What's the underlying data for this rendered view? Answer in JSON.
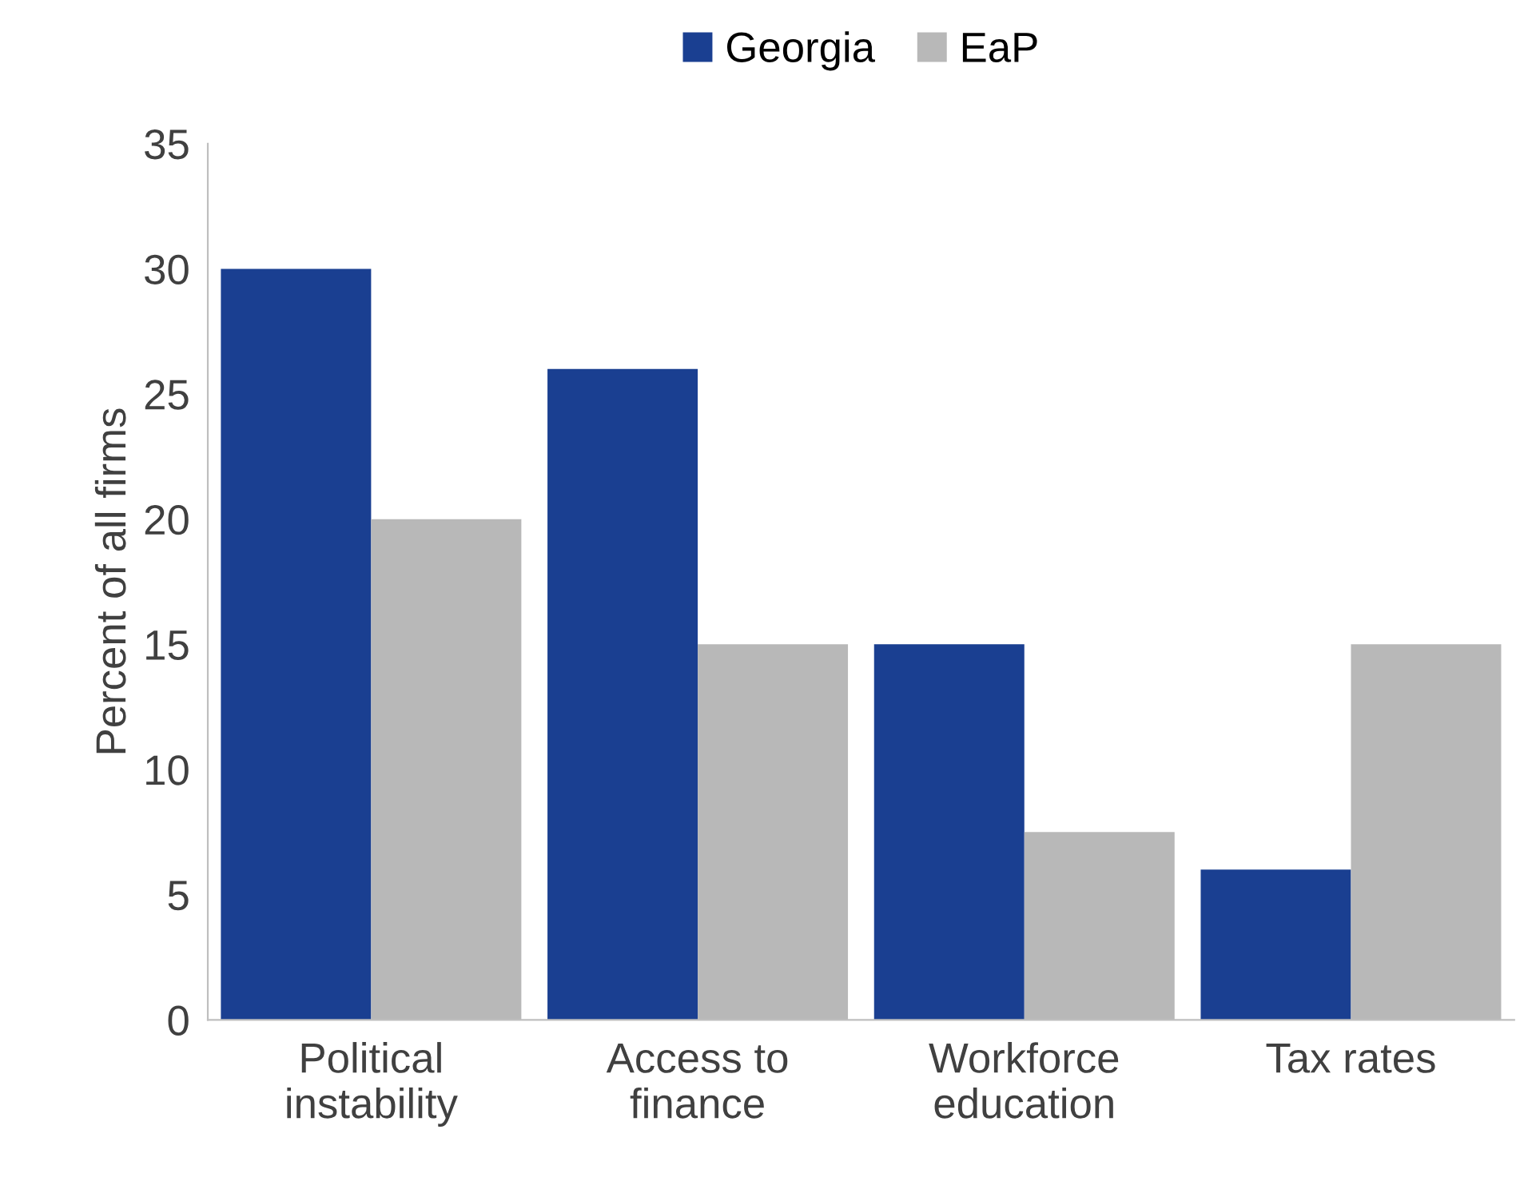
{
  "chart_data": {
    "type": "bar",
    "ylabel": "Percent of all firms",
    "categories": [
      "Political\ninstability",
      "Access to\nfinance",
      "Workforce\neducation",
      "Tax rates"
    ],
    "series": [
      {
        "name": "Georgia",
        "color": "#1a3f91",
        "values": [
          30,
          26,
          15,
          6
        ]
      },
      {
        "name": "EaP",
        "color": "#b8b8b8",
        "values": [
          20,
          15,
          7.5,
          15
        ]
      }
    ],
    "ylim": [
      0,
      35
    ],
    "yticks": [
      0,
      5,
      10,
      15,
      20,
      25,
      30,
      35
    ],
    "grid": false,
    "legend": "top"
  }
}
